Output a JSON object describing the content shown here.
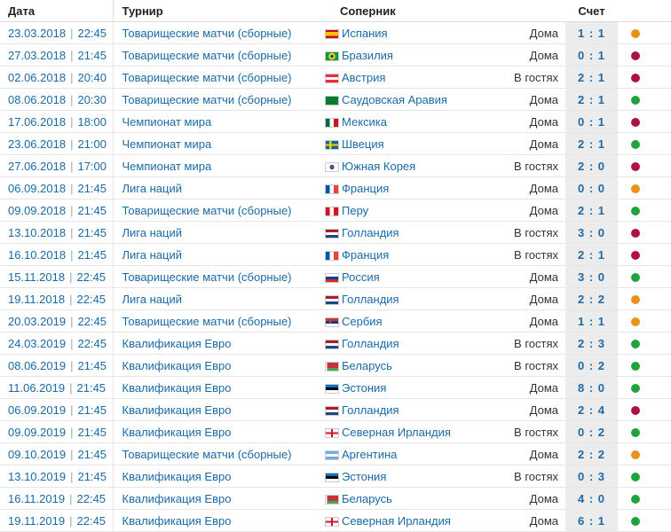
{
  "headers": {
    "date": "Дата",
    "tournament": "Турнир",
    "opponent": "Соперник",
    "score": "Счет"
  },
  "colors": {
    "win": "#1fa33a",
    "draw": "#e8921a",
    "loss": "#b0123f",
    "link": "#1a6aa8"
  },
  "matches": [
    {
      "date": "23.03.2018",
      "time": "22:45",
      "tournament": "Товарищеские матчи (сборные)",
      "flag": "spain",
      "opponent": "Испания",
      "venue": "Дома",
      "score": "1 : 1",
      "result": "draw"
    },
    {
      "date": "27.03.2018",
      "time": "21:45",
      "tournament": "Товарищеские матчи (сборные)",
      "flag": "brazil",
      "opponent": "Бразилия",
      "venue": "Дома",
      "score": "0 : 1",
      "result": "loss"
    },
    {
      "date": "02.06.2018",
      "time": "20:40",
      "tournament": "Товарищеские матчи (сборные)",
      "flag": "austria",
      "opponent": "Австрия",
      "venue": "В гостях",
      "score": "2 : 1",
      "result": "loss"
    },
    {
      "date": "08.06.2018",
      "time": "20:30",
      "tournament": "Товарищеские матчи (сборные)",
      "flag": "saudi",
      "opponent": "Саудовская Аравия",
      "venue": "Дома",
      "score": "2 : 1",
      "result": "win"
    },
    {
      "date": "17.06.2018",
      "time": "18:00",
      "tournament": "Чемпионат мира",
      "flag": "mexico",
      "opponent": "Мексика",
      "venue": "Дома",
      "score": "0 : 1",
      "result": "loss"
    },
    {
      "date": "23.06.2018",
      "time": "21:00",
      "tournament": "Чемпионат мира",
      "flag": "sweden",
      "opponent": "Швеция",
      "venue": "Дома",
      "score": "2 : 1",
      "result": "win"
    },
    {
      "date": "27.06.2018",
      "time": "17:00",
      "tournament": "Чемпионат мира",
      "flag": "korea",
      "opponent": "Южная Корея",
      "venue": "В гостях",
      "score": "2 : 0",
      "result": "loss"
    },
    {
      "date": "06.09.2018",
      "time": "21:45",
      "tournament": "Лига наций",
      "flag": "france",
      "opponent": "Франция",
      "venue": "Дома",
      "score": "0 : 0",
      "result": "draw"
    },
    {
      "date": "09.09.2018",
      "time": "21:45",
      "tournament": "Товарищеские матчи (сборные)",
      "flag": "peru",
      "opponent": "Перу",
      "venue": "Дома",
      "score": "2 : 1",
      "result": "win"
    },
    {
      "date": "13.10.2018",
      "time": "21:45",
      "tournament": "Лига наций",
      "flag": "netherlands",
      "opponent": "Голландия",
      "venue": "В гостях",
      "score": "3 : 0",
      "result": "loss"
    },
    {
      "date": "16.10.2018",
      "time": "21:45",
      "tournament": "Лига наций",
      "flag": "france",
      "opponent": "Франция",
      "venue": "В гостях",
      "score": "2 : 1",
      "result": "loss"
    },
    {
      "date": "15.11.2018",
      "time": "22:45",
      "tournament": "Товарищеские матчи (сборные)",
      "flag": "russia",
      "opponent": "Россия",
      "venue": "Дома",
      "score": "3 : 0",
      "result": "win"
    },
    {
      "date": "19.11.2018",
      "time": "22:45",
      "tournament": "Лига наций",
      "flag": "netherlands",
      "opponent": "Голландия",
      "venue": "Дома",
      "score": "2 : 2",
      "result": "draw"
    },
    {
      "date": "20.03.2019",
      "time": "22:45",
      "tournament": "Товарищеские матчи (сборные)",
      "flag": "serbia",
      "opponent": "Сербия",
      "venue": "Дома",
      "score": "1 : 1",
      "result": "draw"
    },
    {
      "date": "24.03.2019",
      "time": "22:45",
      "tournament": "Квалификация Евро",
      "flag": "netherlands",
      "opponent": "Голландия",
      "venue": "В гостях",
      "score": "2 : 3",
      "result": "win"
    },
    {
      "date": "08.06.2019",
      "time": "21:45",
      "tournament": "Квалификация Евро",
      "flag": "belarus",
      "opponent": "Беларусь",
      "venue": "В гостях",
      "score": "0 : 2",
      "result": "win"
    },
    {
      "date": "11.06.2019",
      "time": "21:45",
      "tournament": "Квалификация Евро",
      "flag": "estonia",
      "opponent": "Эстония",
      "venue": "Дома",
      "score": "8 : 0",
      "result": "win"
    },
    {
      "date": "06.09.2019",
      "time": "21:45",
      "tournament": "Квалификация Евро",
      "flag": "netherlands",
      "opponent": "Голландия",
      "venue": "Дома",
      "score": "2 : 4",
      "result": "loss"
    },
    {
      "date": "09.09.2019",
      "time": "21:45",
      "tournament": "Квалификация Евро",
      "flag": "nireland",
      "opponent": "Северная Ирландия",
      "venue": "В гостях",
      "score": "0 : 2",
      "result": "win"
    },
    {
      "date": "09.10.2019",
      "time": "21:45",
      "tournament": "Товарищеские матчи (сборные)",
      "flag": "argentina",
      "opponent": "Аргентина",
      "venue": "Дома",
      "score": "2 : 2",
      "result": "draw"
    },
    {
      "date": "13.10.2019",
      "time": "21:45",
      "tournament": "Квалификация Евро",
      "flag": "estonia",
      "opponent": "Эстония",
      "venue": "В гостях",
      "score": "0 : 3",
      "result": "win"
    },
    {
      "date": "16.11.2019",
      "time": "22:45",
      "tournament": "Квалификация Евро",
      "flag": "belarus",
      "opponent": "Беларусь",
      "venue": "Дома",
      "score": "4 : 0",
      "result": "win"
    },
    {
      "date": "19.11.2019",
      "time": "22:45",
      "tournament": "Квалификация Евро",
      "flag": "nireland",
      "opponent": "Северная Ирландия",
      "venue": "Дома",
      "score": "6 : 1",
      "result": "win"
    }
  ]
}
